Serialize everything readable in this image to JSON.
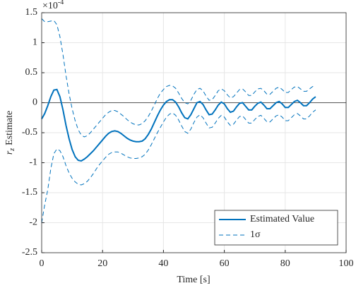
{
  "chart_data": {
    "type": "line",
    "xlabel": "Time [s]",
    "ylabel": {
      "symbol": "r",
      "subscript": "z",
      "text": "Estimate"
    },
    "exponent": {
      "base": "×10",
      "power": "-4"
    },
    "xlim": [
      0,
      100
    ],
    "xticks": [
      0,
      20,
      40,
      60,
      80,
      100
    ],
    "ylim": [
      -2.5,
      1.5
    ],
    "yticks": [
      -2.5,
      -2,
      -1.5,
      -1,
      -0.5,
      0,
      0.5,
      1,
      1.5
    ],
    "grid": true,
    "hline": 0,
    "legend": "lower right",
    "x": [
      0,
      1,
      2,
      3,
      4,
      5,
      6,
      7,
      8,
      9,
      10,
      11,
      12,
      13,
      14,
      15,
      16,
      17,
      18,
      19,
      20,
      21,
      22,
      23,
      24,
      25,
      26,
      27,
      28,
      29,
      30,
      31,
      32,
      33,
      34,
      35,
      36,
      37,
      38,
      39,
      40,
      41,
      42,
      43,
      44,
      45,
      46,
      47,
      48,
      49,
      50,
      51,
      52,
      53,
      54,
      55,
      56,
      57,
      58,
      59,
      60,
      61,
      62,
      63,
      64,
      65,
      66,
      67,
      68,
      69,
      70,
      71,
      72,
      73,
      74,
      75,
      76,
      77,
      78,
      79,
      80,
      81,
      82,
      83,
      84,
      85,
      86,
      87,
      88,
      89,
      90
    ],
    "series": [
      {
        "name": "Estimated Value",
        "color": "#0072bd",
        "dash": false,
        "values": [
          -0.27,
          -0.18,
          -0.05,
          0.1,
          0.21,
          0.22,
          0.1,
          -0.12,
          -0.38,
          -0.6,
          -0.78,
          -0.9,
          -0.96,
          -0.97,
          -0.94,
          -0.9,
          -0.85,
          -0.8,
          -0.74,
          -0.68,
          -0.62,
          -0.56,
          -0.51,
          -0.48,
          -0.47,
          -0.48,
          -0.51,
          -0.55,
          -0.59,
          -0.62,
          -0.64,
          -0.65,
          -0.65,
          -0.64,
          -0.6,
          -0.53,
          -0.44,
          -0.33,
          -0.22,
          -0.12,
          -0.04,
          0.02,
          0.05,
          0.05,
          0.01,
          -0.07,
          -0.17,
          -0.25,
          -0.27,
          -0.2,
          -0.1,
          0,
          0.02,
          -0.03,
          -0.12,
          -0.2,
          -0.19,
          -0.12,
          -0.04,
          0.01,
          -0.02,
          -0.1,
          -0.16,
          -0.14,
          -0.07,
          -0.01,
          0,
          -0.06,
          -0.12,
          -0.12,
          -0.06,
          -0.01,
          0.01,
          -0.04,
          -0.1,
          -0.1,
          -0.05,
          0,
          0.02,
          -0.02,
          -0.08,
          -0.08,
          -0.03,
          0.02,
          0.04,
          0,
          -0.05,
          -0.05,
          0,
          0.06,
          0.1
        ]
      },
      {
        "name": "1σ",
        "color": "#0072bd",
        "dash": true,
        "values": [
          1.4,
          1.35,
          1.35,
          1.36,
          1.37,
          1.3,
          1.1,
          0.8,
          0.45,
          0.15,
          -0.1,
          -0.3,
          -0.45,
          -0.54,
          -0.57,
          -0.55,
          -0.5,
          -0.44,
          -0.38,
          -0.32,
          -0.26,
          -0.2,
          -0.16,
          -0.13,
          -0.13,
          -0.15,
          -0.19,
          -0.23,
          -0.28,
          -0.32,
          -0.35,
          -0.37,
          -0.37,
          -0.35,
          -0.3,
          -0.23,
          -0.14,
          -0.04,
          0.07,
          0.16,
          0.22,
          0.27,
          0.29,
          0.28,
          0.24,
          0.16,
          0.07,
          0,
          -0.02,
          0.04,
          0.14,
          0.22,
          0.24,
          0.2,
          0.11,
          0.04,
          0.05,
          0.12,
          0.2,
          0.23,
          0.2,
          0.13,
          0.08,
          0.1,
          0.16,
          0.22,
          0.23,
          0.18,
          0.12,
          0.12,
          0.18,
          0.23,
          0.24,
          0.2,
          0.14,
          0.14,
          0.19,
          0.24,
          0.26,
          0.22,
          0.17,
          0.17,
          0.22,
          0.26,
          0.27,
          0.23,
          0.19,
          0.19,
          0.23,
          0.27,
          0.28
        ],
        "lower": [
          -2.0,
          -1.7,
          -1.45,
          -1.1,
          -0.85,
          -0.77,
          -0.8,
          -0.9,
          -1.05,
          -1.17,
          -1.26,
          -1.32,
          -1.36,
          -1.37,
          -1.35,
          -1.31,
          -1.25,
          -1.18,
          -1.1,
          -1.03,
          -0.97,
          -0.91,
          -0.86,
          -0.83,
          -0.82,
          -0.82,
          -0.84,
          -0.87,
          -0.9,
          -0.92,
          -0.93,
          -0.93,
          -0.92,
          -0.9,
          -0.86,
          -0.79,
          -0.7,
          -0.6,
          -0.5,
          -0.41,
          -0.32,
          -0.24,
          -0.19,
          -0.17,
          -0.21,
          -0.29,
          -0.39,
          -0.48,
          -0.51,
          -0.44,
          -0.33,
          -0.24,
          -0.2,
          -0.25,
          -0.34,
          -0.42,
          -0.41,
          -0.34,
          -0.26,
          -0.21,
          -0.24,
          -0.32,
          -0.38,
          -0.36,
          -0.29,
          -0.23,
          -0.22,
          -0.28,
          -0.34,
          -0.34,
          -0.28,
          -0.23,
          -0.21,
          -0.26,
          -0.32,
          -0.32,
          -0.27,
          -0.22,
          -0.2,
          -0.24,
          -0.3,
          -0.3,
          -0.25,
          -0.2,
          -0.18,
          -0.22,
          -0.27,
          -0.27,
          -0.22,
          -0.16,
          -0.12
        ]
      }
    ]
  }
}
